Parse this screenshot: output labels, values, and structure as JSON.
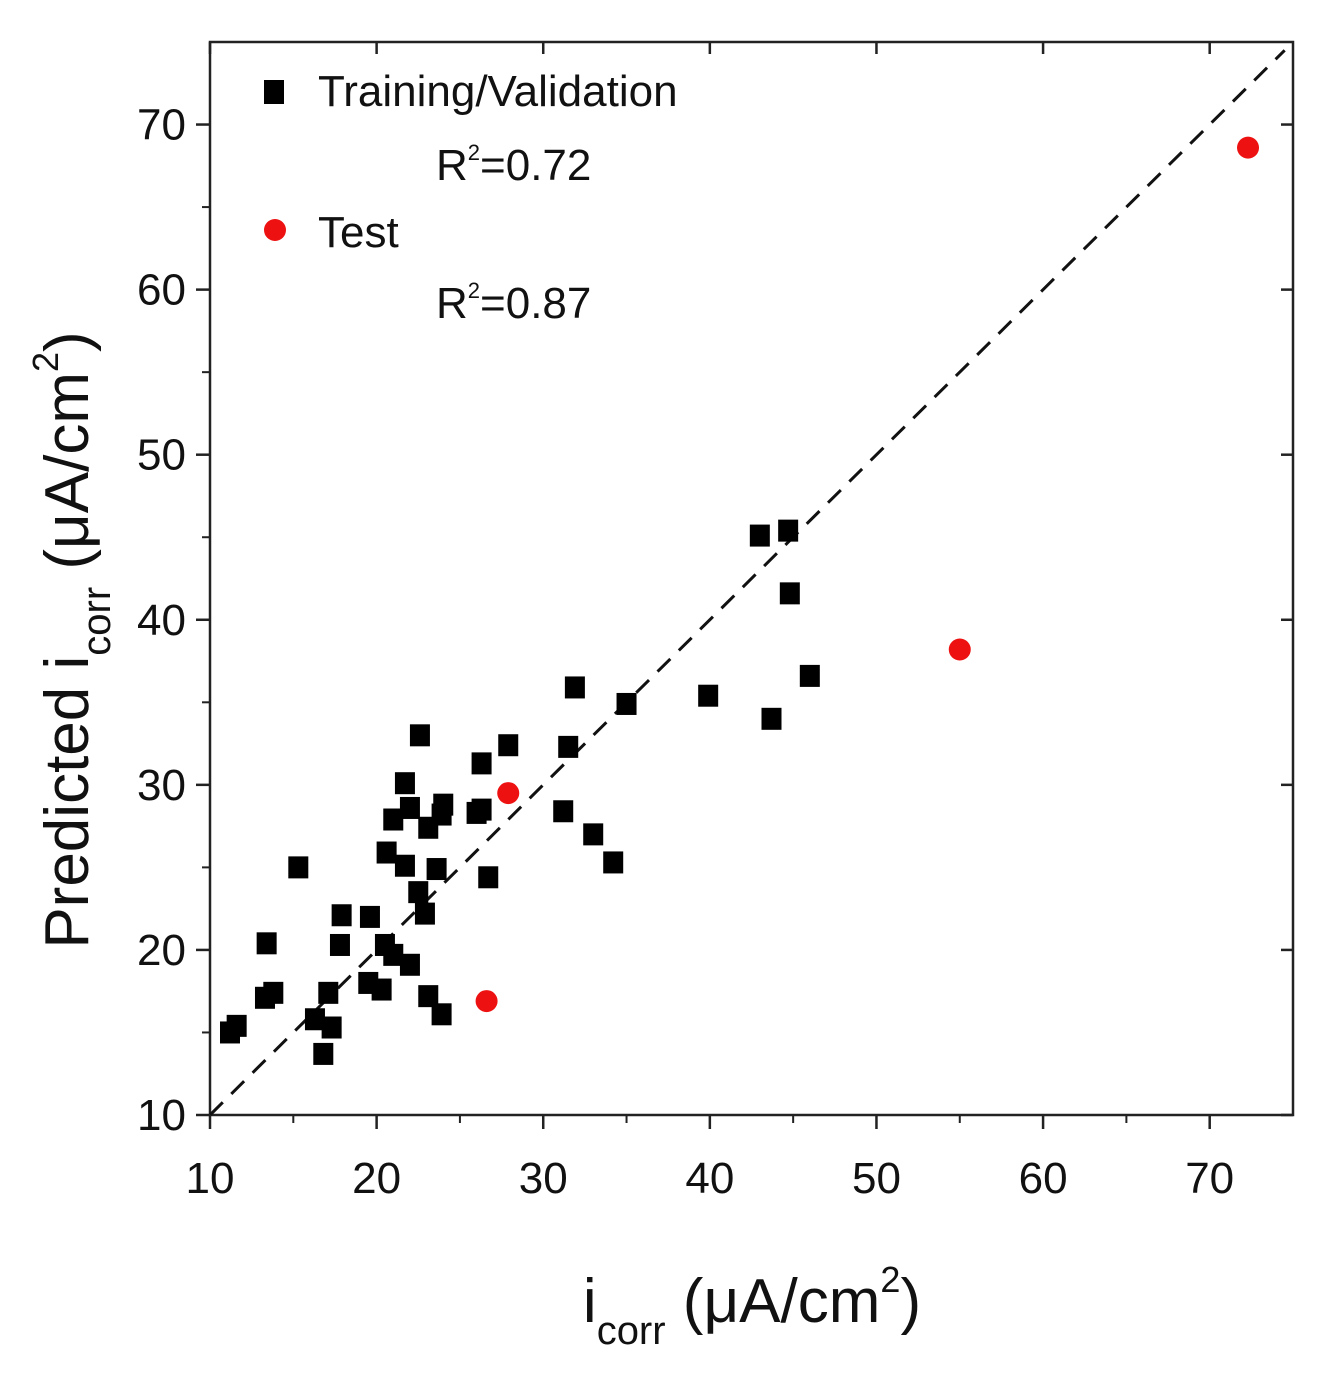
{
  "chart_data": {
    "type": "scatter",
    "title": "",
    "xlabel": {
      "main": "i",
      "sub": "corr",
      "unit_open": " (μA/cm",
      "unit_sup": "2",
      "unit_close": ")"
    },
    "ylabel": {
      "main": "Predicted i",
      "sub": "corr",
      "unit_open": " (μA/cm",
      "unit_sup": "2",
      "unit_close": ")"
    },
    "xlim": [
      10,
      75
    ],
    "ylim": [
      10,
      75
    ],
    "xticks": [
      10,
      20,
      30,
      40,
      50,
      60,
      70
    ],
    "yticks": [
      10,
      20,
      30,
      40,
      50,
      60,
      70
    ],
    "grid": false,
    "reference_line": {
      "style": "dashed",
      "from": [
        10,
        10
      ],
      "to": [
        74.5,
        74.5
      ]
    },
    "legend_position": "top-left",
    "series": [
      {
        "name": "Training/Validation",
        "r2_label": "R",
        "r2_sup": "2",
        "r2_value": "=0.72",
        "marker": "square",
        "color": "#000000",
        "points": [
          [
            11.2,
            15.0
          ],
          [
            11.6,
            15.4
          ],
          [
            13.3,
            17.1
          ],
          [
            13.8,
            17.4
          ],
          [
            13.4,
            20.4
          ],
          [
            15.3,
            25.0
          ],
          [
            16.3,
            15.8
          ],
          [
            16.8,
            13.7
          ],
          [
            17.1,
            17.4
          ],
          [
            17.3,
            15.3
          ],
          [
            17.8,
            20.3
          ],
          [
            17.9,
            22.1
          ],
          [
            19.5,
            18.0
          ],
          [
            19.6,
            22.0
          ],
          [
            20.3,
            17.6
          ],
          [
            20.5,
            20.3
          ],
          [
            20.6,
            25.9
          ],
          [
            21.0,
            19.7
          ],
          [
            21.0,
            27.9
          ],
          [
            21.7,
            25.1
          ],
          [
            21.7,
            30.1
          ],
          [
            22.0,
            19.1
          ],
          [
            22.0,
            28.6
          ],
          [
            22.5,
            23.5
          ],
          [
            22.6,
            33.0
          ],
          [
            22.9,
            22.2
          ],
          [
            23.1,
            17.2
          ],
          [
            23.1,
            27.4
          ],
          [
            23.6,
            24.9
          ],
          [
            23.9,
            16.1
          ],
          [
            23.9,
            28.2
          ],
          [
            24.0,
            28.8
          ],
          [
            26.0,
            28.3
          ],
          [
            26.3,
            28.5
          ],
          [
            26.3,
            31.3
          ],
          [
            26.7,
            24.4
          ],
          [
            27.9,
            32.4
          ],
          [
            31.2,
            28.4
          ],
          [
            31.5,
            32.3
          ],
          [
            31.9,
            35.9
          ],
          [
            33.0,
            27.0
          ],
          [
            34.2,
            25.3
          ],
          [
            35.0,
            34.9
          ],
          [
            39.9,
            35.4
          ],
          [
            43.0,
            45.1
          ],
          [
            43.7,
            34.0
          ],
          [
            44.7,
            45.4
          ],
          [
            44.8,
            41.6
          ],
          [
            46.0,
            36.6
          ]
        ]
      },
      {
        "name": "Test",
        "r2_label": "R",
        "r2_sup": "2",
        "r2_value": "=0.87",
        "marker": "circle",
        "color": "#ee1111",
        "points": [
          [
            26.6,
            16.9
          ],
          [
            27.9,
            29.5
          ],
          [
            55.0,
            38.2
          ],
          [
            72.3,
            68.6
          ]
        ]
      }
    ]
  }
}
